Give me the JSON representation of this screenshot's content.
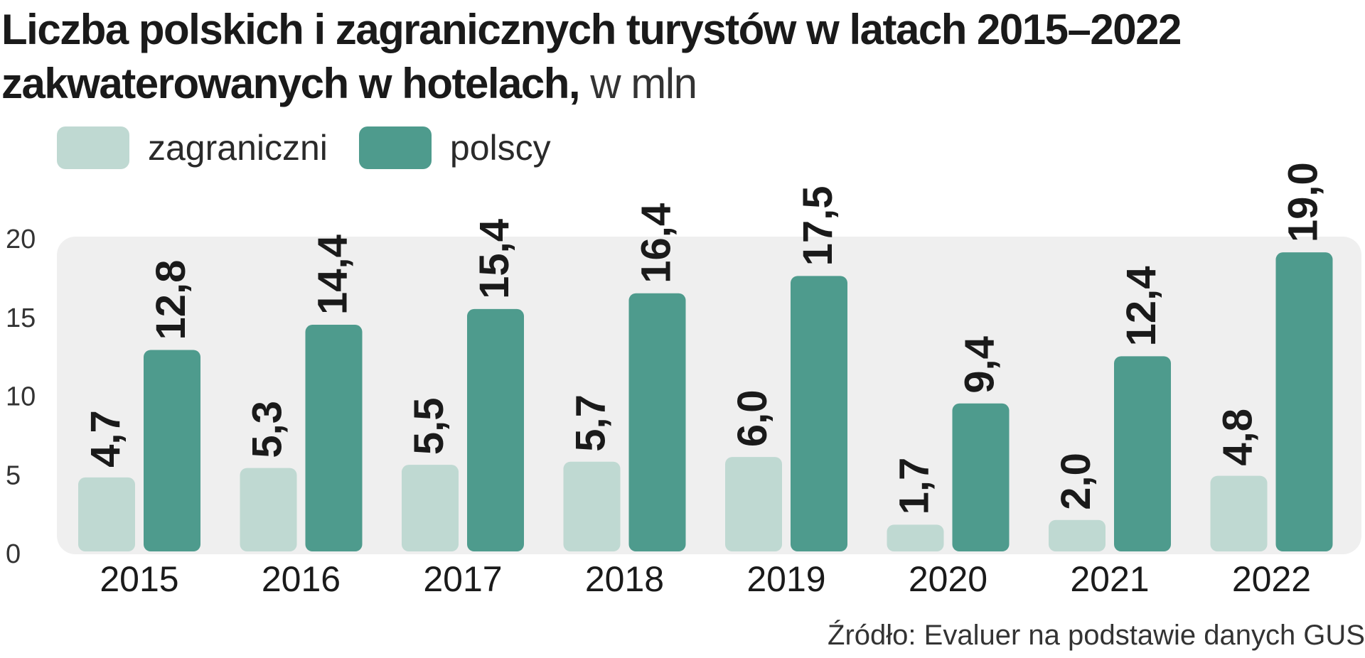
{
  "title": {
    "bold": "Liczba polskich i zagranicznych turystów w latach 2015–2022 zakwaterowanych w hotelach,",
    "unit": " w mln"
  },
  "legend": [
    {
      "label": "zagraniczni",
      "color": "#bfd9d2"
    },
    {
      "label": "polscy",
      "color": "#4e9b8d"
    }
  ],
  "source": "Źródło: Evaluer na podstawie danych GUS",
  "chart_data": {
    "type": "bar",
    "title": "Liczba polskich i zagranicznych turystów w latach 2015–2022 zakwaterowanych w hotelach, w mln",
    "categories": [
      "2015",
      "2016",
      "2017",
      "2018",
      "2019",
      "2020",
      "2021",
      "2022"
    ],
    "series": [
      {
        "name": "zagraniczni",
        "color": "#bfd9d2",
        "values": [
          4.7,
          5.3,
          5.5,
          5.7,
          6.0,
          1.7,
          2.0,
          4.8
        ],
        "labels": [
          "4,7",
          "5,3",
          "5,5",
          "5,7",
          "6,0",
          "1,7",
          "2,0",
          "4,8"
        ]
      },
      {
        "name": "polscy",
        "color": "#4e9b8d",
        "values": [
          12.8,
          14.4,
          15.4,
          16.4,
          17.5,
          9.4,
          12.4,
          19.0
        ],
        "labels": [
          "12,8",
          "14,4",
          "15,4",
          "16,4",
          "17,5",
          "9,4",
          "12,4",
          "19,0"
        ]
      }
    ],
    "yticks": [
      0,
      5,
      10,
      15,
      20
    ],
    "ylim": [
      0,
      20
    ],
    "xlabel": "",
    "ylabel": "",
    "grid": false,
    "legend_position": "top-left",
    "background": "#efefef"
  }
}
